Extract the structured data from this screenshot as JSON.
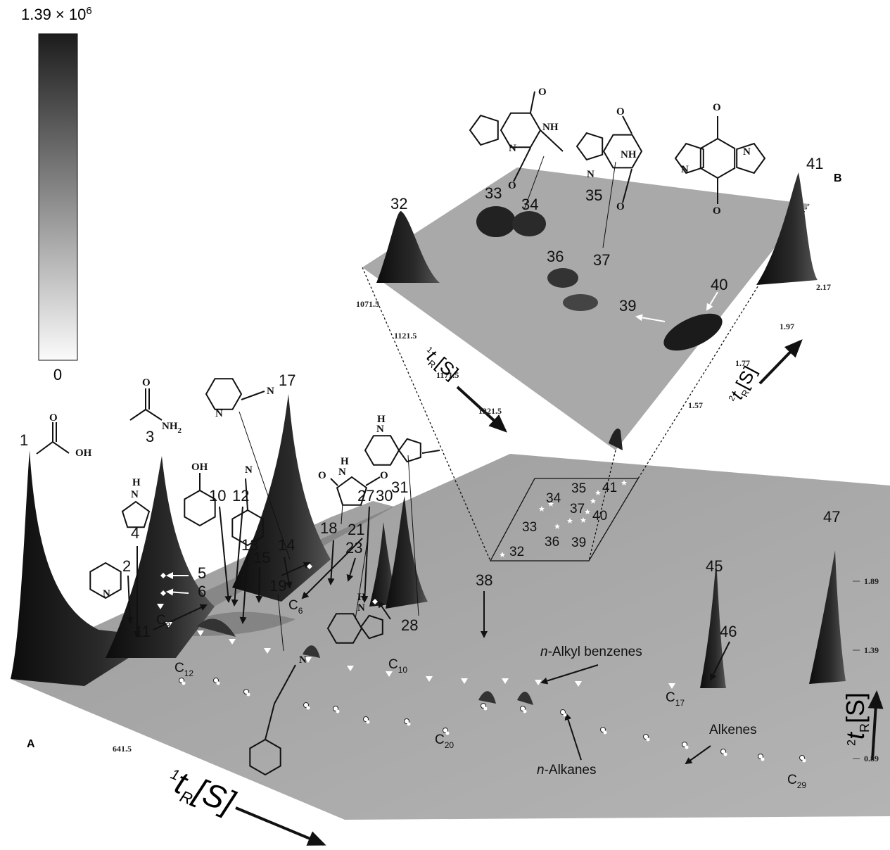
{
  "colorbar": {
    "max": {
      "base": "1.39 × 10",
      "exp": "6"
    },
    "min": "0"
  },
  "panels": {
    "a": "A",
    "b": "B"
  },
  "peaks_a": [
    "1",
    "2",
    "3",
    "4",
    "5",
    "6",
    "10",
    "11",
    "12",
    "13",
    "14",
    "15",
    "17",
    "18",
    "19",
    "21",
    "23",
    "27",
    "28",
    "30",
    "31",
    "38",
    "45",
    "46",
    "47"
  ],
  "inset_peaks": [
    "32",
    "33",
    "34",
    "35",
    "36",
    "37",
    "39",
    "40",
    "41"
  ],
  "box_peaks": [
    "34",
    "35",
    "41",
    "33",
    "37",
    "40",
    "36",
    "39",
    "32"
  ],
  "carbon_labels": [
    {
      "base": "C",
      "sub": "3"
    },
    {
      "base": "C",
      "sub": "6"
    },
    {
      "base": "C",
      "sub": "10"
    },
    {
      "base": "C",
      "sub": "12"
    },
    {
      "base": "C",
      "sub": "17"
    },
    {
      "base": "C",
      "sub": "20"
    },
    {
      "base": "C",
      "sub": "29"
    }
  ],
  "annotations": [
    {
      "italic": "n",
      "text": "-Alkyl benzenes"
    },
    {
      "italic": "",
      "text": "Alkenes"
    },
    {
      "italic": "n",
      "text": "-Alkanes"
    }
  ],
  "axes": {
    "main_x_ticks": [
      "641.5"
    ],
    "main_y_ticks": [
      "1.89",
      "1.39",
      "0.89"
    ],
    "inset_x_ticks": [
      "1071.5",
      "1121.5",
      "1171.5",
      "1221.5"
    ],
    "inset_y_ticks": [
      "1.57",
      "1.77",
      "1.97",
      "2.17"
    ],
    "titles": [
      {
        "pre": "1",
        "t": "t",
        "sub": "R",
        "post": "[S]"
      },
      {
        "pre": "2",
        "t": "t",
        "sub": "R",
        "post": "[S]"
      },
      {
        "pre": "1",
        "t": "t",
        "sub": "R",
        "post": "[S]"
      },
      {
        "pre": "2",
        "t": "t",
        "sub": "R",
        "post": "[S]"
      }
    ]
  },
  "atoms": [
    "O",
    "OH",
    "O",
    {
      "base": "NH",
      "sub": "2"
    },
    "H",
    "N",
    "N",
    "OH",
    "N",
    "N",
    "N",
    "H",
    "N",
    "O",
    "O",
    "H",
    "N",
    "H",
    "N",
    "N",
    "O",
    "NH",
    "N",
    "O",
    "O",
    "NH",
    "N",
    "O",
    "O",
    "N",
    "N",
    "O"
  ]
}
